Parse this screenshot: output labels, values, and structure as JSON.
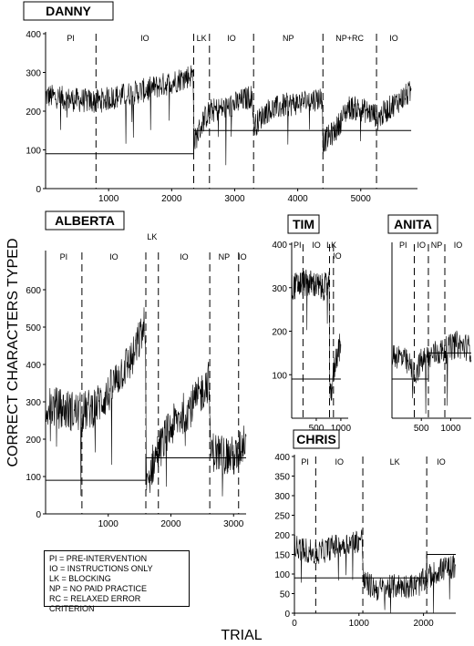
{
  "figure": {
    "ylabel": "CORRECT CHARACTERS TYPED",
    "xlabel": "TRIAL",
    "legend": [
      "PI = PRE-INTERVENTION",
      "IO = INSTRUCTIONS ONLY",
      "LK = BLOCKING",
      "NP = NO PAID PRACTICE",
      "RC = RELAXED ERROR CRITERION"
    ]
  },
  "colors": {
    "trace": "#000000",
    "line": "#000000"
  },
  "chart_data": [
    {
      "type": "line",
      "title": "DANNY",
      "xlim": [
        0,
        5900
      ],
      "ylim": [
        0,
        400
      ],
      "xticks": [
        1000,
        2000,
        3000,
        4000,
        5000
      ],
      "yticks": [
        0,
        100,
        200,
        300,
        400
      ],
      "phases": [
        {
          "label": "PI",
          "start": 0,
          "end": 800
        },
        {
          "label": "IO",
          "start": 800,
          "end": 2350
        },
        {
          "label": "LK",
          "start": 2350,
          "end": 2600
        },
        {
          "label": "IO",
          "start": 2600,
          "end": 3300
        },
        {
          "label": "NP",
          "start": 3300,
          "end": 4400
        },
        {
          "label": "NP+RC",
          "start": 4400,
          "end": 5250
        },
        {
          "label": "IO",
          "start": 5250,
          "end": 5800
        }
      ],
      "criterion": [
        {
          "x0": 0,
          "x1": 2350,
          "y": 90
        },
        {
          "x0": 2350,
          "x1": 5800,
          "y": 150
        }
      ],
      "trend": [
        [
          0,
          240
        ],
        [
          400,
          230
        ],
        [
          800,
          225
        ],
        [
          1200,
          240
        ],
        [
          1600,
          255
        ],
        [
          2000,
          275
        ],
        [
          2340,
          295
        ],
        [
          2360,
          120
        ],
        [
          2500,
          175
        ],
        [
          2600,
          200
        ],
        [
          2900,
          210
        ],
        [
          3280,
          240
        ],
        [
          3300,
          160
        ],
        [
          3500,
          200
        ],
        [
          3800,
          215
        ],
        [
          4100,
          225
        ],
        [
          4390,
          235
        ],
        [
          4400,
          120
        ],
        [
          4600,
          150
        ],
        [
          4800,
          210
        ],
        [
          5000,
          205
        ],
        [
          5240,
          190
        ],
        [
          5260,
          180
        ],
        [
          5500,
          215
        ],
        [
          5800,
          250
        ]
      ]
    },
    {
      "type": "line",
      "title": "ALBERTA",
      "xlim": [
        0,
        3200
      ],
      "ylim": [
        0,
        700
      ],
      "xticks": [
        1000,
        2000,
        3000
      ],
      "yticks": [
        0,
        100,
        200,
        300,
        400,
        500,
        600
      ],
      "phases": [
        {
          "label": "PI",
          "start": 0,
          "end": 580
        },
        {
          "label": "IO",
          "start": 580,
          "end": 1600
        },
        {
          "label": "LK",
          "start": 1600,
          "end": 1800
        },
        {
          "label": "IO",
          "start": 1800,
          "end": 2620
        },
        {
          "label": "NP",
          "start": 2620,
          "end": 3080
        },
        {
          "label": "IO",
          "start": 3080,
          "end": 3200
        }
      ],
      "criterion": [
        {
          "x0": 0,
          "x1": 1600,
          "y": 90
        },
        {
          "x0": 1600,
          "x1": 3200,
          "y": 150
        }
      ],
      "trend": [
        [
          0,
          290
        ],
        [
          300,
          280
        ],
        [
          580,
          270
        ],
        [
          800,
          290
        ],
        [
          1000,
          320
        ],
        [
          1200,
          380
        ],
        [
          1400,
          420
        ],
        [
          1590,
          510
        ],
        [
          1610,
          60
        ],
        [
          1700,
          130
        ],
        [
          1800,
          170
        ],
        [
          2000,
          230
        ],
        [
          2200,
          270
        ],
        [
          2400,
          300
        ],
        [
          2610,
          360
        ],
        [
          2630,
          170
        ],
        [
          2800,
          160
        ],
        [
          3070,
          150
        ],
        [
          3090,
          170
        ],
        [
          3200,
          210
        ]
      ]
    },
    {
      "type": "line",
      "title": "TIM",
      "xlim": [
        0,
        1150
      ],
      "ylim": [
        0,
        400
      ],
      "xticks": [
        500,
        1000
      ],
      "yticks": [
        100,
        200,
        300,
        400
      ],
      "phases": [
        {
          "label": "PI",
          "start": 0,
          "end": 230
        },
        {
          "label": "IO",
          "start": 230,
          "end": 770
        },
        {
          "label": "LK",
          "start": 770,
          "end": 850
        },
        {
          "label": "IO",
          "start": 850,
          "end": 1000
        }
      ],
      "criterion": [
        {
          "x0": 0,
          "x1": 1000,
          "y": 90
        }
      ],
      "trend": [
        [
          0,
          300
        ],
        [
          200,
          310
        ],
        [
          400,
          310
        ],
        [
          600,
          300
        ],
        [
          760,
          305
        ],
        [
          780,
          40
        ],
        [
          850,
          100
        ],
        [
          900,
          140
        ],
        [
          1000,
          170
        ]
      ]
    },
    {
      "type": "line",
      "title": "ANITA",
      "xlim": [
        0,
        1350
      ],
      "ylim": [
        0,
        400
      ],
      "xticks": [
        500,
        1000
      ],
      "yticks": [],
      "phases": [
        {
          "label": "PI",
          "start": 0,
          "end": 380
        },
        {
          "label": "IO",
          "start": 380,
          "end": 620
        },
        {
          "label": "NP",
          "start": 620,
          "end": 900
        },
        {
          "label": "IO",
          "start": 900,
          "end": 1350
        }
      ],
      "criterion": [
        {
          "x0": 0,
          "x1": 620,
          "y": 90
        },
        {
          "x0": 620,
          "x1": 1350,
          "y": 150
        }
      ],
      "trend": [
        [
          0,
          150
        ],
        [
          150,
          140
        ],
        [
          300,
          120
        ],
        [
          380,
          100
        ],
        [
          500,
          130
        ],
        [
          620,
          140
        ],
        [
          750,
          150
        ],
        [
          900,
          155
        ],
        [
          1100,
          170
        ],
        [
          1350,
          160
        ]
      ]
    },
    {
      "type": "line",
      "title": "CHRIS",
      "xlim": [
        0,
        2500
      ],
      "ylim": [
        0,
        400
      ],
      "xticks": [
        0,
        1000,
        2000
      ],
      "yticks": [
        0,
        50,
        100,
        150,
        200,
        250,
        300,
        350,
        400
      ],
      "phases": [
        {
          "label": "PI",
          "start": 0,
          "end": 330
        },
        {
          "label": "IO",
          "start": 330,
          "end": 1060
        },
        {
          "label": "LK",
          "start": 1060,
          "end": 2050
        },
        {
          "label": "IO",
          "start": 2050,
          "end": 2500
        }
      ],
      "criterion": [
        {
          "x0": 0,
          "x1": 2050,
          "y": 90
        },
        {
          "x0": 2050,
          "x1": 2500,
          "y": 150
        }
      ],
      "trend": [
        [
          0,
          170
        ],
        [
          200,
          160
        ],
        [
          330,
          150
        ],
        [
          600,
          170
        ],
        [
          900,
          180
        ],
        [
          1050,
          190
        ],
        [
          1070,
          80
        ],
        [
          1300,
          60
        ],
        [
          1600,
          70
        ],
        [
          1900,
          70
        ],
        [
          2050,
          90
        ],
        [
          2250,
          110
        ],
        [
          2500,
          120
        ]
      ]
    }
  ]
}
